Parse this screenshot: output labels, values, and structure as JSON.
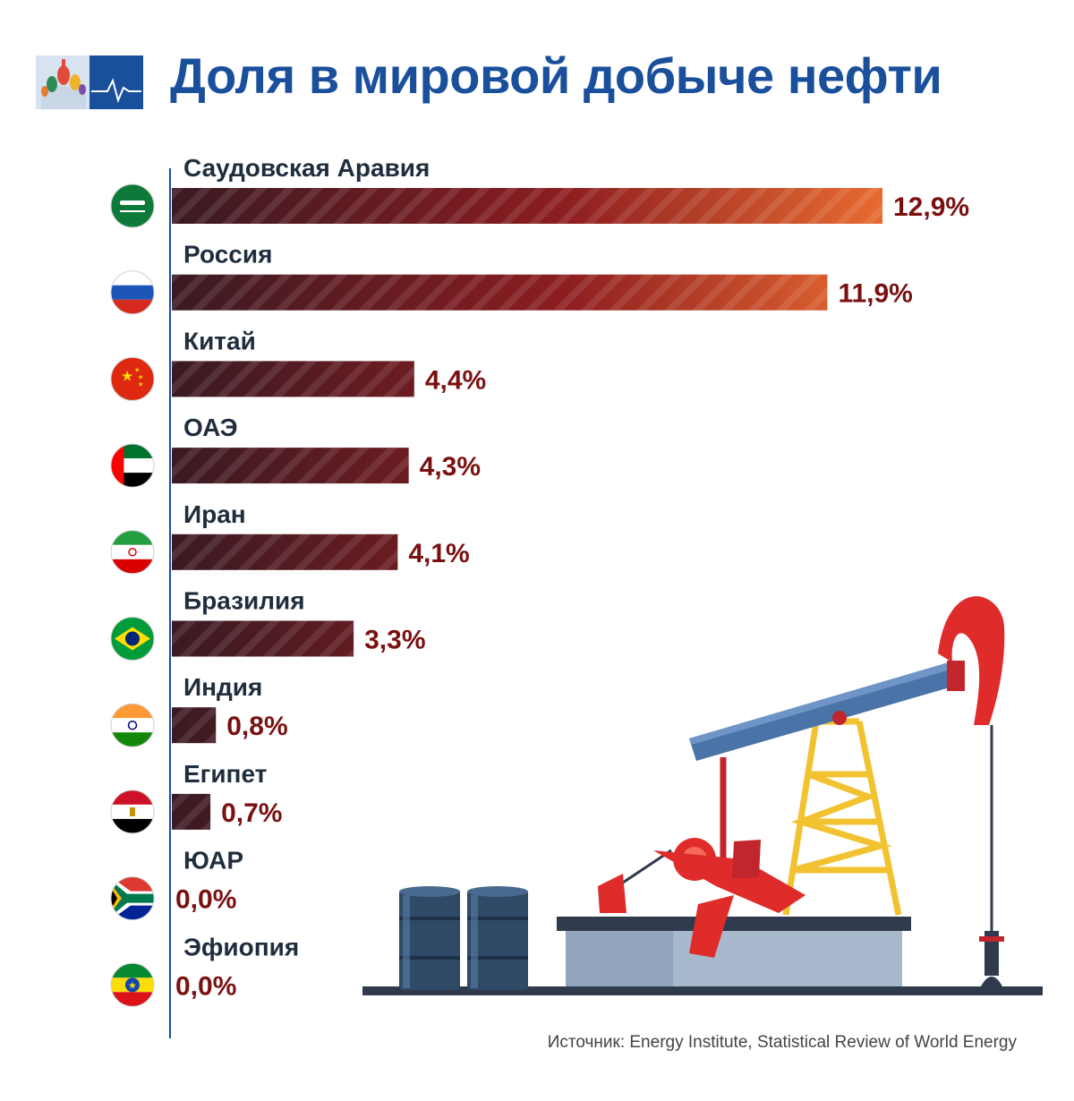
{
  "title": "Доля в мировой добыче нефти",
  "source": "Источник: Energy Institute, Statistical Review of World Energy",
  "colors": {
    "title": "#1a4f9c",
    "label": "#1f2d3d",
    "value": "#7a1010",
    "bar_dark": "#3a1a22",
    "bar_mid": "#8c1d20",
    "bar_light": "#e86a30"
  },
  "chart_data": {
    "type": "bar",
    "orientation": "horizontal",
    "unit": "%",
    "categories": [
      "Саудовская Аравия",
      "Россия",
      "Китай",
      "ОАЭ",
      "Иран",
      "Бразилия",
      "Индия",
      "Египет",
      "ЮАР",
      "Эфиопия"
    ],
    "values": [
      12.9,
      11.9,
      4.4,
      4.3,
      4.1,
      3.3,
      0.8,
      0.7,
      0.0,
      0.0
    ],
    "value_labels": [
      "12,9%",
      "11,9%",
      "4,4%",
      "4,3%",
      "4,1%",
      "3,3%",
      "0,8%",
      "0,7%",
      "0,0%",
      "0,0%"
    ],
    "flags": [
      "saudi-arabia-flag-icon",
      "russia-flag-icon",
      "china-flag-icon",
      "uae-flag-icon",
      "iran-flag-icon",
      "brazil-flag-icon",
      "india-flag-icon",
      "egypt-flag-icon",
      "south-africa-flag-icon",
      "ethiopia-flag-icon"
    ],
    "xlim": [
      0,
      12.9
    ],
    "grid": false,
    "legend": "none"
  }
}
